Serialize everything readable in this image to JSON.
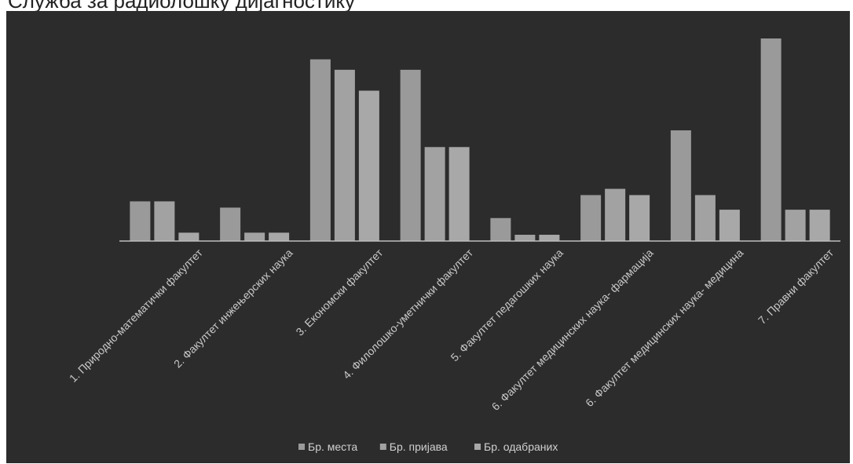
{
  "page": {
    "heading": "Служба за радиолошку дијагностику"
  },
  "chart_data": {
    "type": "bar",
    "title": "",
    "xlabel": "",
    "ylabel": "",
    "ylim": [
      0,
      100
    ],
    "grid": false,
    "legend_position": "bottom",
    "categories": [
      "1. Природно-математички факултет",
      "2. Факултет инжењерских наука",
      "3. Економски факултет",
      "4. Филолошко-уметнички факултет",
      "5. Факултет педагошких наука",
      "6. Факултет медицинских наука- фармација",
      "6. Факултет медицинских наука- медицина",
      "7. Правни факултет"
    ],
    "series": [
      {
        "name": "Бр. места",
        "color": "#9a9a9a",
        "values": [
          19,
          16,
          87,
          82,
          11,
          22,
          53,
          97
        ]
      },
      {
        "name": "Бр. пријава",
        "color": "#a2a2a2",
        "values": [
          19,
          4,
          82,
          45,
          3,
          25,
          22,
          15
        ]
      },
      {
        "name": "Бр. одабраних",
        "color": "#a8a8a8",
        "values": [
          4,
          4,
          72,
          45,
          3,
          22,
          15,
          15
        ]
      }
    ]
  }
}
